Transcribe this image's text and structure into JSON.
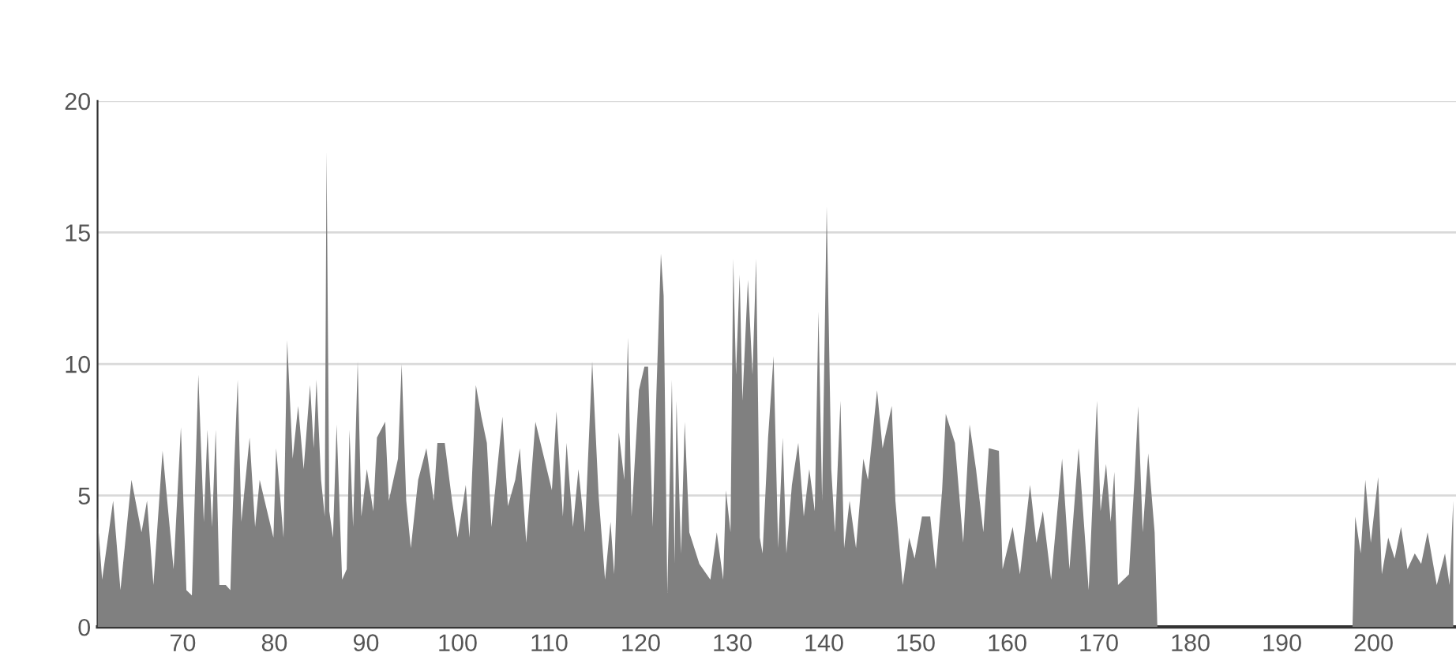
{
  "chart_data": {
    "type": "area",
    "series": [
      {
        "color": "#808080",
        "x": [
          60.7,
          61.2,
          62.4,
          63.2,
          64.4,
          65.5,
          66.1,
          66.8,
          67.8,
          69,
          69.8,
          70.4,
          71,
          71.7,
          72.3,
          72.7,
          73.2,
          73.6,
          74,
          74.7,
          75.2,
          75.6,
          76,
          76.4,
          77.3,
          77.9,
          78.4,
          79.9,
          80.2,
          81,
          81.4,
          82,
          82.6,
          83.2,
          83.9,
          84.3,
          84.6,
          85.1,
          85.5,
          85.7,
          86,
          86.4,
          86.8,
          87.4,
          87.9,
          88.2,
          88.6,
          89.1,
          89.5,
          90.1,
          90.8,
          91.2,
          92.1,
          92.5,
          93.5,
          93.9,
          94.4,
          94.9,
          95.7,
          96.6,
          97.4,
          97.8,
          98.6,
          99.4,
          100,
          100.9,
          101.3,
          102,
          102.6,
          103.2,
          103.7,
          104.9,
          105.5,
          106.3,
          106.8,
          107.5,
          108.5,
          110.3,
          110.8,
          111.5,
          111.9,
          112.6,
          113.2,
          113.9,
          114.7,
          115.4,
          116.1,
          116.7,
          117.1,
          117.6,
          118.2,
          118.6,
          119,
          119.8,
          120.4,
          120.8,
          121.3,
          121.7,
          122.2,
          122.5,
          122.9,
          123.4,
          123.7,
          123.9,
          124.4,
          124.8,
          125.3,
          126.4,
          127.6,
          128.3,
          129,
          129.3,
          129.8,
          130.1,
          130.4,
          130.8,
          131.1,
          131.7,
          132.2,
          132.6,
          133,
          133.3,
          133.9,
          134.5,
          135,
          135.5,
          135.9,
          136.5,
          137.2,
          137.8,
          138.4,
          139,
          139.4,
          139.8,
          140.3,
          140.8,
          141.2,
          141.8,
          142.2,
          142.8,
          143.5,
          144.3,
          144.8,
          145.8,
          146.4,
          147.4,
          147.8,
          148.6,
          149.3,
          149.9,
          150.7,
          151.6,
          152.2,
          152.9,
          153.3,
          154.3,
          155.2,
          155.9,
          156.6,
          157.4,
          158,
          159.1,
          159.5,
          160.6,
          161.4,
          162.5,
          163.2,
          163.9,
          164.8,
          166,
          166.8,
          167.8,
          168.9,
          169.8,
          170.2,
          170.8,
          171.3,
          171.7,
          172.1,
          173.3,
          173.9,
          174.3,
          174.8,
          175.4,
          176.1,
          176.4,
          197.7,
          198,
          198.6,
          199.1,
          199.7,
          200.5,
          200.9,
          201.6,
          202.3,
          203,
          203.7,
          204.5,
          205.2,
          205.9,
          206.9,
          207.8,
          208.3,
          208.7
        ],
        "values": [
          4.2,
          1.8,
          4.8,
          1.4,
          5.6,
          3.6,
          4.8,
          1.6,
          6.7,
          2.2,
          7.6,
          1.4,
          1.2,
          9.6,
          4.0,
          7.5,
          3.8,
          7.5,
          1.6,
          1.6,
          1.4,
          6.0,
          9.4,
          4.0,
          7.2,
          3.8,
          5.6,
          3.4,
          6.8,
          3.4,
          10.9,
          6.4,
          8.4,
          6.0,
          9.2,
          6.8,
          9.4,
          5.6,
          4.2,
          18.1,
          4.4,
          3.4,
          7.7,
          1.8,
          2.2,
          7.5,
          3.8,
          10.1,
          4.2,
          6.0,
          4.4,
          7.2,
          7.8,
          4.8,
          6.4,
          10.0,
          4.8,
          3.0,
          5.6,
          6.8,
          4.8,
          7.0,
          7.0,
          4.8,
          3.4,
          5.4,
          3.4,
          9.2,
          8.0,
          7.0,
          3.8,
          8.0,
          4.6,
          5.6,
          6.8,
          3.2,
          7.8,
          5.2,
          8.2,
          4.2,
          7.0,
          3.8,
          6.0,
          3.6,
          10.1,
          5.0,
          1.8,
          4.0,
          2.0,
          7.4,
          5.6,
          11.0,
          4.2,
          9.0,
          9.9,
          9.9,
          3.8,
          8.8,
          14.2,
          12.6,
          1.3,
          9.4,
          2.4,
          8.6,
          2.8,
          7.8,
          3.6,
          2.4,
          1.8,
          3.6,
          1.8,
          5.2,
          3.6,
          14.0,
          9.6,
          13.4,
          8.6,
          13.2,
          9.6,
          14.0,
          3.4,
          2.8,
          7.2,
          10.3,
          3.0,
          7.2,
          2.8,
          5.4,
          7.0,
          4.2,
          6.0,
          4.4,
          12.0,
          4.8,
          16.0,
          6.0,
          3.6,
          8.6,
          3.0,
          4.8,
          3.0,
          6.4,
          5.6,
          9.0,
          6.8,
          8.4,
          4.8,
          1.6,
          3.4,
          2.6,
          4.2,
          4.2,
          2.2,
          5.2,
          8.1,
          7.0,
          3.2,
          7.7,
          6.0,
          3.6,
          6.8,
          6.7,
          2.2,
          3.8,
          2.0,
          5.4,
          3.2,
          4.4,
          1.8,
          6.4,
          2.2,
          6.8,
          1.4,
          8.6,
          4.4,
          6.2,
          4.0,
          5.9,
          1.6,
          2.0,
          5.6,
          8.4,
          3.6,
          6.6,
          3.6,
          0,
          0,
          4.2,
          2.8,
          5.6,
          3.2,
          5.7,
          2.0,
          3.4,
          2.6,
          3.8,
          2.2,
          2.8,
          2.4,
          3.6,
          1.6,
          2.8,
          1.6,
          4.8
        ]
      }
    ],
    "xlim": [
      60.7,
      209
    ],
    "xticks": [
      70,
      80,
      90,
      100,
      110,
      120,
      130,
      140,
      150,
      160,
      170,
      180,
      190,
      200
    ],
    "ylim": [
      0,
      20
    ],
    "yticks": [
      0,
      5,
      10,
      15,
      20
    ],
    "grid": "y"
  }
}
